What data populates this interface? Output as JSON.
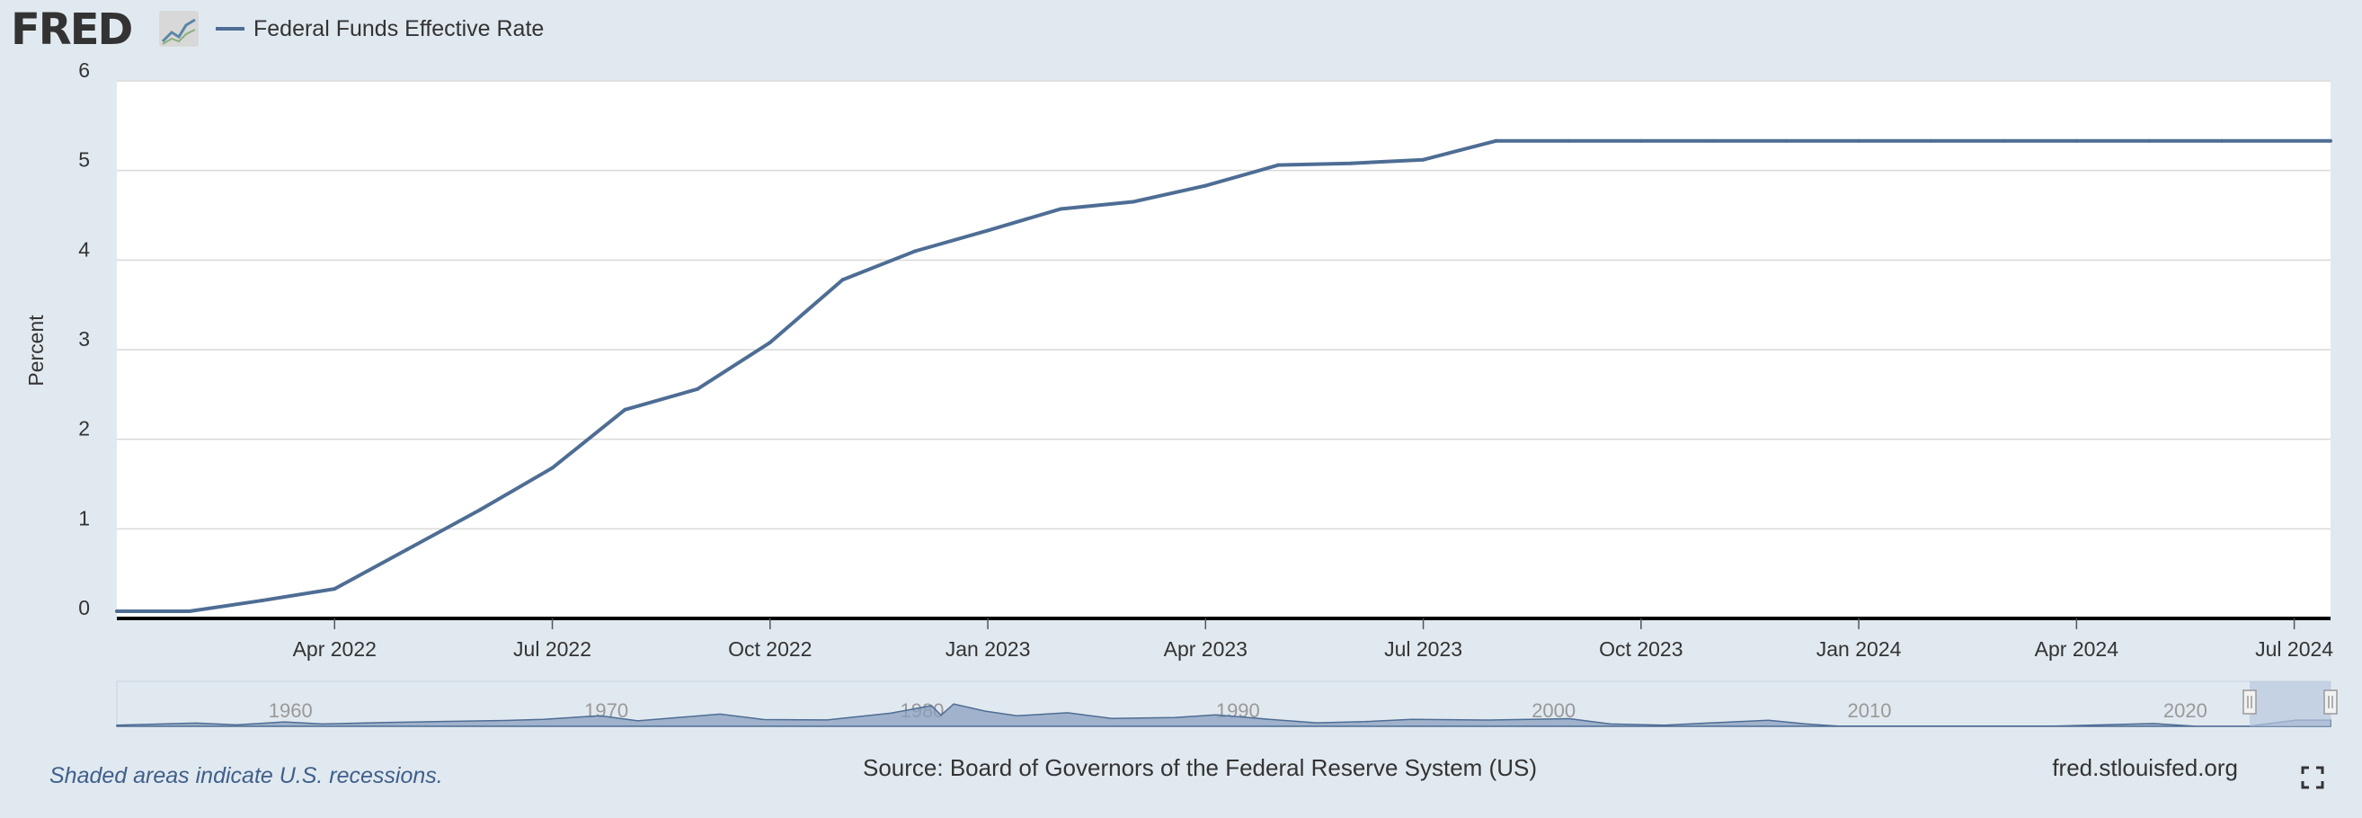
{
  "header": {
    "logo_text": "FRED",
    "legend_label": "Federal Funds Effective Rate"
  },
  "colors": {
    "series": "#4e6d94",
    "background": "#e1e9f0",
    "plot_bg": "#ffffff",
    "grid": "#d9d9d9",
    "navigator_fill": "#8a9fc0",
    "navigator_window": "#b9c7de",
    "footnote": "#3f5f8a"
  },
  "chart_data": {
    "type": "line",
    "title": "",
    "xlabel": "",
    "ylabel": "Percent",
    "ylim": [
      0,
      6
    ],
    "yticks": [
      "0",
      "1",
      "2",
      "3",
      "4",
      "5",
      "6"
    ],
    "xlim": [
      "2022-01",
      "2024-07"
    ],
    "xticks": [
      "Apr 2022",
      "Jul 2022",
      "Oct 2022",
      "Jan 2023",
      "Apr 2023",
      "Jul 2023",
      "Oct 2023",
      "Jan 2024",
      "Apr 2024",
      "Jul 2024"
    ],
    "grid": true,
    "legend": "top-left",
    "series": [
      {
        "name": "Federal Funds Effective Rate",
        "frequency": "monthly",
        "x": [
          "2022-01",
          "2022-02",
          "2022-03",
          "2022-04",
          "2022-05",
          "2022-06",
          "2022-07",
          "2022-08",
          "2022-09",
          "2022-10",
          "2022-11",
          "2022-12",
          "2023-01",
          "2023-02",
          "2023-03",
          "2023-04",
          "2023-05",
          "2023-06",
          "2023-07",
          "2023-08",
          "2023-09",
          "2023-10",
          "2023-11",
          "2023-12",
          "2024-01",
          "2024-02",
          "2024-03",
          "2024-04",
          "2024-05",
          "2024-06",
          "2024-07"
        ],
        "values": [
          0.08,
          0.08,
          0.2,
          0.33,
          0.77,
          1.21,
          1.68,
          2.33,
          2.56,
          3.08,
          3.78,
          4.1,
          4.33,
          4.57,
          4.65,
          4.83,
          5.06,
          5.08,
          5.12,
          5.33,
          5.33,
          5.33,
          5.33,
          5.33,
          5.33,
          5.33,
          5.33,
          5.33,
          5.33,
          5.33,
          5.33
        ]
      }
    ],
    "navigator": {
      "labels": [
        "1960",
        "1970",
        "1980",
        "1990",
        "2000",
        "2010",
        "2020"
      ],
      "selected_range": [
        "2022-01",
        "2024-07"
      ]
    }
  },
  "footer": {
    "recession_note": "Shaded areas indicate U.S. recessions.",
    "source": "Source: Board of Governors of the Federal Reserve System (US)",
    "site": "fred.stlouisfed.org"
  }
}
